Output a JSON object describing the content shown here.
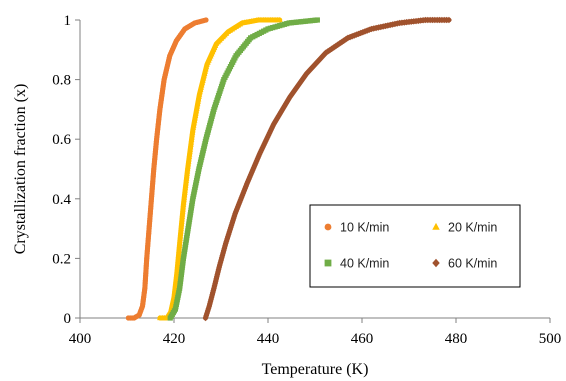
{
  "chart_data": {
    "type": "scatter",
    "title": "",
    "xlabel": "Temperature (K)",
    "ylabel": "Crystallization  fraction  (x)",
    "xlim": [
      400,
      500
    ],
    "ylim": [
      0,
      1
    ],
    "x_ticks": [
      "400",
      "420",
      "440",
      "460",
      "480",
      "500"
    ],
    "y_ticks": [
      "0",
      "0.2",
      "0.4",
      "0.6",
      "0.8",
      "1"
    ],
    "grid": false,
    "legend_placement": "center-right",
    "series": [
      {
        "name": "10 K/min",
        "color": "#ED7D31",
        "marker": "circle",
        "points": [
          [
            410.3,
            0
          ],
          [
            411.5,
            0
          ],
          [
            412.6,
            0.01
          ],
          [
            413.3,
            0.04
          ],
          [
            413.8,
            0.1
          ],
          [
            414.2,
            0.2
          ],
          [
            414.7,
            0.3
          ],
          [
            415.2,
            0.4
          ],
          [
            415.7,
            0.5
          ],
          [
            416.3,
            0.6
          ],
          [
            417.0,
            0.7
          ],
          [
            417.9,
            0.8
          ],
          [
            419.1,
            0.88
          ],
          [
            420.5,
            0.93
          ],
          [
            422.3,
            0.97
          ],
          [
            424.4,
            0.99
          ],
          [
            426.8,
            1.0
          ]
        ]
      },
      {
        "name": "20 K/min",
        "color": "#FFC000",
        "marker": "triangle",
        "points": [
          [
            417.0,
            0
          ],
          [
            418.5,
            0
          ],
          [
            419.3,
            0.02
          ],
          [
            420.0,
            0.07
          ],
          [
            420.6,
            0.15
          ],
          [
            421.2,
            0.25
          ],
          [
            422.0,
            0.38
          ],
          [
            422.9,
            0.5
          ],
          [
            424.0,
            0.63
          ],
          [
            425.4,
            0.75
          ],
          [
            427.0,
            0.85
          ],
          [
            429.0,
            0.92
          ],
          [
            431.5,
            0.96
          ],
          [
            434.5,
            0.99
          ],
          [
            438.0,
            1.0
          ],
          [
            442.5,
            1.0
          ]
        ]
      },
      {
        "name": "40 K/min",
        "color": "#70AD47",
        "marker": "square",
        "points": [
          [
            419.2,
            0
          ],
          [
            420.3,
            0.03
          ],
          [
            421.2,
            0.1
          ],
          [
            422.0,
            0.2
          ],
          [
            423.0,
            0.3
          ],
          [
            424.0,
            0.4
          ],
          [
            425.3,
            0.5
          ],
          [
            426.8,
            0.6
          ],
          [
            428.5,
            0.7
          ],
          [
            430.6,
            0.8
          ],
          [
            433.2,
            0.88
          ],
          [
            436.3,
            0.94
          ],
          [
            440.0,
            0.97
          ],
          [
            444.5,
            0.99
          ],
          [
            450.5,
            1.0
          ]
        ]
      },
      {
        "name": "60 K/min",
        "color": "#A0522D",
        "marker": "diamond",
        "points": [
          [
            426.7,
            0
          ],
          [
            427.5,
            0.04
          ],
          [
            428.5,
            0.1
          ],
          [
            429.6,
            0.17
          ],
          [
            431.0,
            0.25
          ],
          [
            433.0,
            0.35
          ],
          [
            435.5,
            0.45
          ],
          [
            438.2,
            0.55
          ],
          [
            441.2,
            0.65
          ],
          [
            444.6,
            0.74
          ],
          [
            448.2,
            0.82
          ],
          [
            452.3,
            0.89
          ],
          [
            457.0,
            0.94
          ],
          [
            462.0,
            0.97
          ],
          [
            468.0,
            0.99
          ],
          [
            473.5,
            1.0
          ],
          [
            478.5,
            1.0
          ]
        ]
      }
    ]
  }
}
